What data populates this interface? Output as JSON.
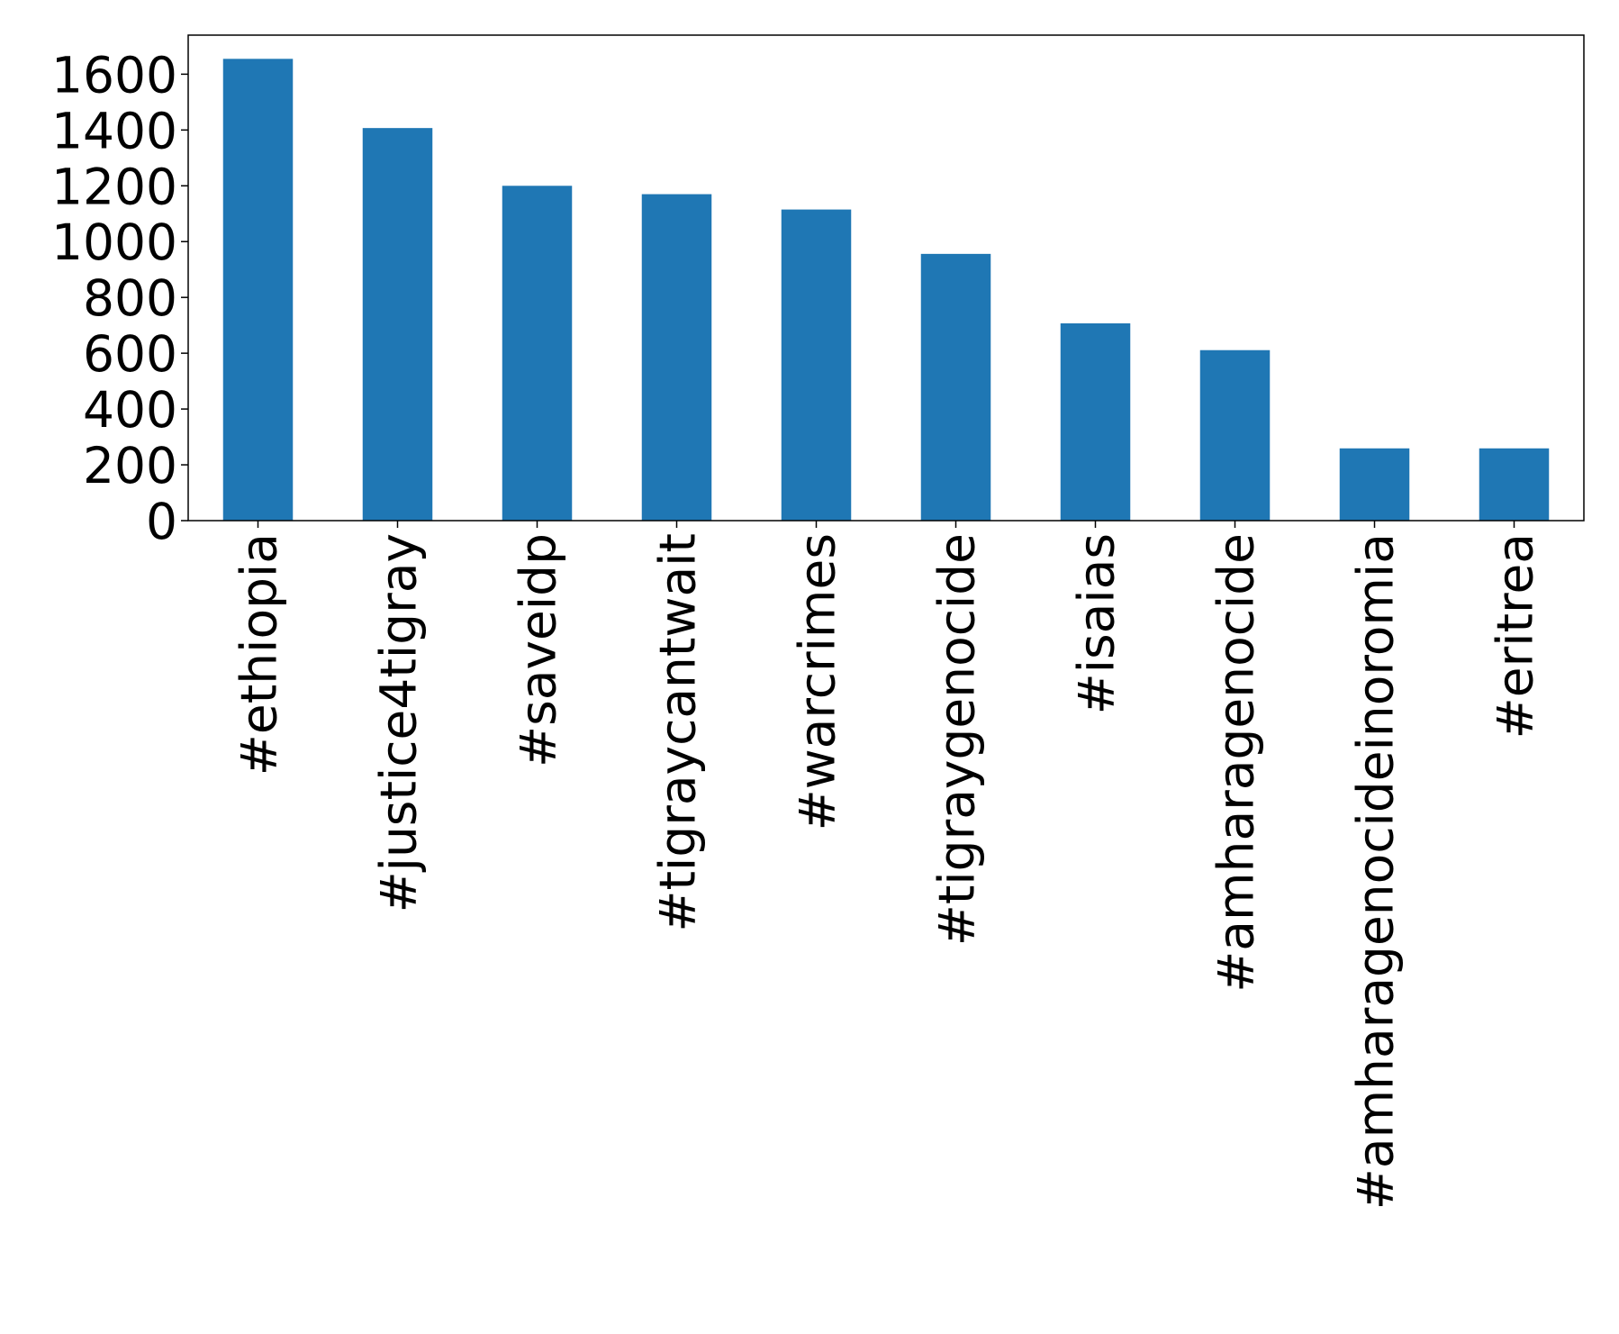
{
  "chart_data": {
    "type": "bar",
    "categories": [
      "#ethiopia",
      "#justice4tigray",
      "#saveidp",
      "#tigraycantwait",
      "#warcrimes",
      "#tigraygenocide",
      "#isaias",
      "#amharagenocide",
      "#amharagenocideinoromia",
      "#eritrea"
    ],
    "values": [
      1655,
      1407,
      1200,
      1170,
      1115,
      956,
      707,
      611,
      259,
      259
    ],
    "color": "#1f77b4",
    "ylim": [
      0,
      1740
    ],
    "yticks": [
      0,
      200,
      400,
      600,
      800,
      1000,
      1200,
      1400,
      1600
    ],
    "grid": false
  }
}
